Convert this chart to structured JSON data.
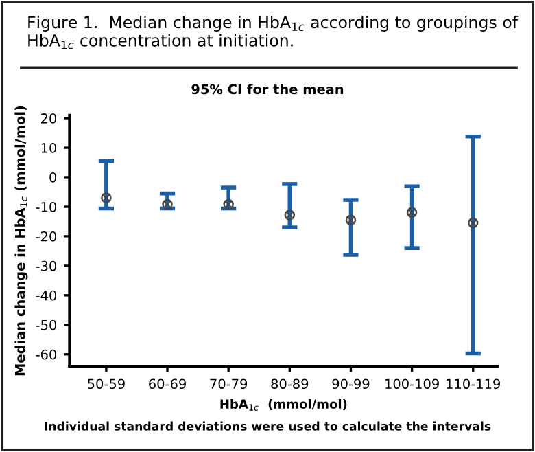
{
  "chart_data": {
    "type": "scatter",
    "title": "Figure 1.  Median change in HbA$_{1c}$ according to groupings of HbA$_{1c}$ concentration at initiation.",
    "subtitle": "95% CI for the mean",
    "xlabel": "HbA$_{1c}$  (mmol/mol)",
    "ylabel": "Median change in HbA$_{1c}$ (mmol/mol)",
    "annotations": [
      "Individual standard deviations were used to calculate the intervals"
    ],
    "categories": [
      "50-59",
      "60-69",
      "70-79",
      "80-89",
      "90-99",
      "100-109",
      "110-119"
    ],
    "values": [
      -7.0,
      -9.2,
      -9.2,
      -12.8,
      -14.5,
      -11.9,
      -15.5
    ],
    "errors": [
      [
        -10.6,
        5.5
      ],
      [
        -10.6,
        -5.5
      ],
      [
        -10.6,
        -3.5
      ],
      [
        -17.0,
        -2.3
      ],
      [
        -26.3,
        -7.7
      ],
      [
        -24.0,
        -3.1
      ],
      [
        -59.7,
        13.8
      ]
    ],
    "color": "#1a5fa8",
    "colors": [
      "#444444",
      "#444444",
      "#444444",
      "#444444",
      "#444444",
      "#444444",
      "#444444"
    ],
    "marker": "circle",
    "ylim": [
      -64,
      21
    ],
    "yticks": [
      20,
      10,
      0,
      -10,
      -20,
      -30,
      -40,
      -50,
      -60
    ],
    "grid": false,
    "legend": false
  }
}
